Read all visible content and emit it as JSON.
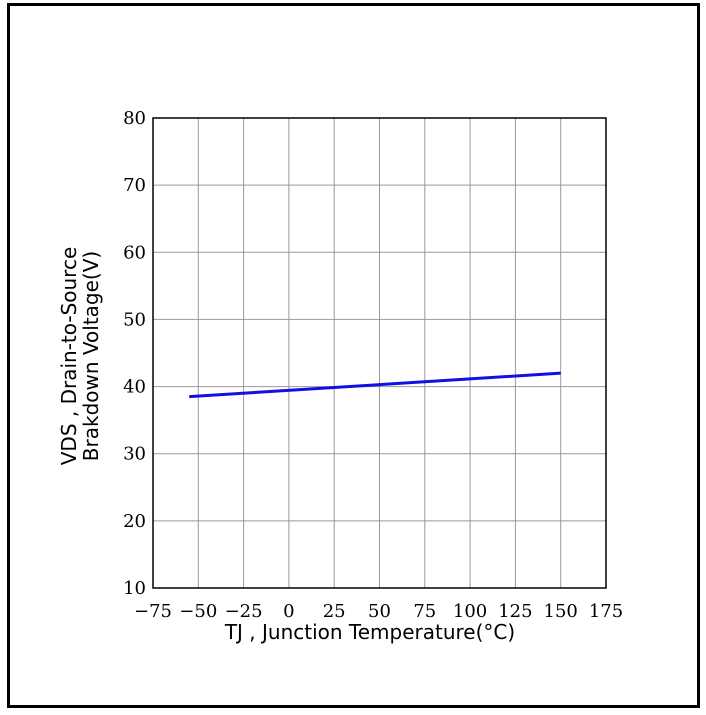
{
  "chart_data": {
    "type": "line",
    "title": "",
    "xlabel": "TJ , Junction Temperature(°C)",
    "ylabel_line1": "VDS , Drain-to-Source",
    "ylabel_line2": "Brakdown Voltage(V)",
    "xlim": [
      -75,
      175
    ],
    "ylim": [
      10,
      80
    ],
    "xticks": [
      -75,
      -50,
      -25,
      0,
      25,
      50,
      75,
      100,
      125,
      150,
      175
    ],
    "yticks": [
      10,
      20,
      30,
      40,
      50,
      60,
      70,
      80
    ],
    "grid": true,
    "series": [
      {
        "x": [
          -55,
          150
        ],
        "y": [
          38.5,
          42.0
        ],
        "color": "#1010e0"
      }
    ]
  }
}
